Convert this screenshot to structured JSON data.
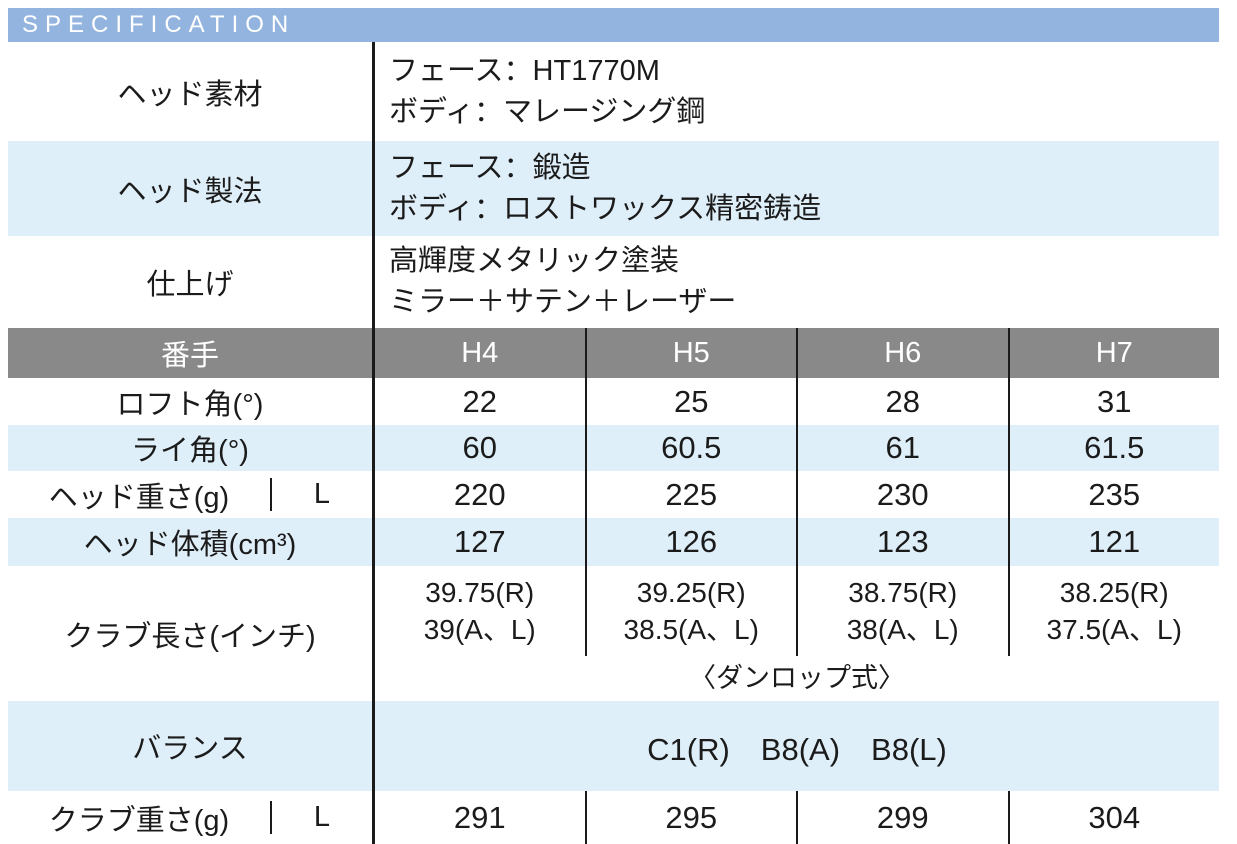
{
  "title_bar": {
    "label": "SPECIFICATION"
  },
  "colors": {
    "title_bar_bg": "#93B4DF",
    "alt_row_bg": "#DFEFF9",
    "spec_header_bg": "#898989",
    "divider": "#1A1A1A",
    "text": "#1B1B1B"
  },
  "info_rows": [
    {
      "label": "ヘッド素材",
      "line1": "フェース：HT1770M",
      "line2": "ボディ：マレージング鋼"
    },
    {
      "label": "ヘッド製法",
      "line1": "フェース：鍛造",
      "line2": "ボディ：ロストワックス精密鋳造"
    },
    {
      "label": "仕上げ",
      "line1": "高輝度メタリック塗装",
      "line2": "ミラー＋サテン＋レーザー"
    }
  ],
  "spec_table": {
    "header": {
      "label": "番手",
      "columns": [
        "H4",
        "H5",
        "H6",
        "H7"
      ]
    },
    "loft": {
      "label": "ロフト角(°)",
      "values": [
        "22",
        "25",
        "28",
        "31"
      ]
    },
    "lie": {
      "label": "ライ角(°)",
      "values": [
        "60",
        "60.5",
        "61",
        "61.5"
      ]
    },
    "head_weight": {
      "label": "ヘッド重さ(g)",
      "sub_label": "L",
      "values": [
        "220",
        "225",
        "230",
        "235"
      ]
    },
    "head_volume": {
      "label": "ヘッド体積(cm³)",
      "values": [
        "127",
        "126",
        "123",
        "121"
      ]
    },
    "club_length": {
      "label": "クラブ長さ(インチ)",
      "values": [
        {
          "line1": "39.75(R)",
          "line2": "39(A、L)"
        },
        {
          "line1": "39.25(R)",
          "line2": "38.5(A、L)"
        },
        {
          "line1": "38.75(R)",
          "line2": "38(A、L)"
        },
        {
          "line1": "38.25(R)",
          "line2": "37.5(A、L)"
        }
      ],
      "note": "〈ダンロップ式〉"
    },
    "balance": {
      "label": "バランス",
      "value": "C1(R)　B8(A)　B8(L)"
    },
    "club_weight": {
      "label": "クラブ重さ(g)",
      "sub_label": "L",
      "values": [
        "291",
        "295",
        "299",
        "304"
      ]
    }
  }
}
